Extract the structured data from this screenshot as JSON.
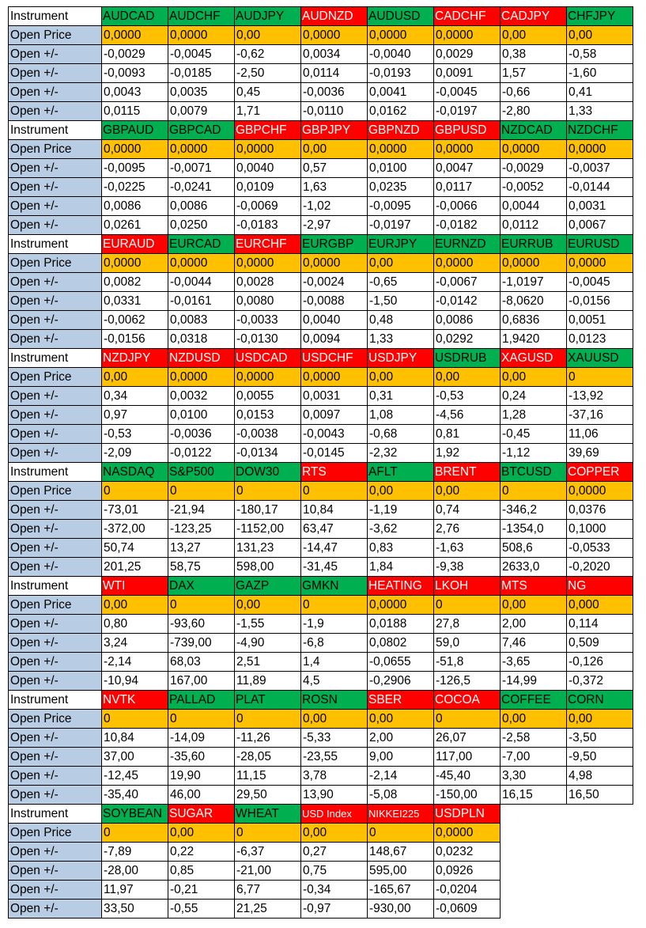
{
  "blocks": [
    {
      "label": "Instrument",
      "instruments": [
        {
          "name": "AUDCAD",
          "color": "#00b050"
        },
        {
          "name": "AUDCHF",
          "color": "#00b050"
        },
        {
          "name": "AUDJPY",
          "color": "#00b050"
        },
        {
          "name": "AUDNZD",
          "color": "#ff0000"
        },
        {
          "name": "AUDUSD",
          "color": "#00b050"
        },
        {
          "name": "CADCHF",
          "color": "#ff0000"
        },
        {
          "name": "CADJPY",
          "color": "#ff0000"
        },
        {
          "name": "CHFJPY",
          "color": "#00b050"
        }
      ],
      "rows": [
        {
          "label": "Open Price",
          "cells": [
            "0,0000",
            "0,0000",
            "0,00",
            "0,0000",
            "0,0000",
            "0,0000",
            "0,00",
            "0,00"
          ]
        },
        {
          "label": "Open +/-",
          "cells": [
            "-0,0029",
            "-0,0045",
            "-0,62",
            "0,0034",
            "-0,0040",
            "0,0029",
            "0,38",
            "-0,58"
          ]
        },
        {
          "label": "Open +/-",
          "cells": [
            "-0,0093",
            "-0,0185",
            "-2,50",
            "0,0114",
            "-0,0193",
            "0,0091",
            "1,57",
            "-1,60"
          ]
        },
        {
          "label": "Open +/-",
          "cells": [
            "0,0043",
            "0,0035",
            "0,45",
            "-0,0036",
            "0,0041",
            "-0,0045",
            "-0,66",
            "0,41"
          ]
        },
        {
          "label": "Open +/-",
          "cells": [
            "0,0115",
            "0,0079",
            "1,71",
            "-0,0110",
            "0,0162",
            "-0,0197",
            "-2,80",
            "1,33"
          ]
        }
      ]
    },
    {
      "label": "Instrument",
      "instruments": [
        {
          "name": "GBPAUD",
          "color": "#00b050"
        },
        {
          "name": "GBPCAD",
          "color": "#00b050"
        },
        {
          "name": "GBPCHF",
          "color": "#ff0000"
        },
        {
          "name": "GBPJPY",
          "color": "#ff0000"
        },
        {
          "name": "GBPNZD",
          "color": "#ff0000"
        },
        {
          "name": "GBPUSD",
          "color": "#ff0000"
        },
        {
          "name": "NZDCAD",
          "color": "#00b050"
        },
        {
          "name": "NZDCHF",
          "color": "#00b050"
        }
      ],
      "rows": [
        {
          "label": "Open Price",
          "cells": [
            "0,0000",
            "0,0000",
            "0,0000",
            "0,00",
            "0,0000",
            "0,0000",
            "0,0000",
            "0,0000"
          ]
        },
        {
          "label": "Open +/-",
          "cells": [
            "-0,0095",
            "-0,0071",
            "0,0040",
            "0,57",
            "0,0100",
            "0,0047",
            "-0,0029",
            "-0,0037"
          ]
        },
        {
          "label": "Open +/-",
          "cells": [
            "-0,0225",
            "-0,0241",
            "0,0109",
            "1,63",
            "0,0235",
            "0,0117",
            "-0,0052",
            "-0,0144"
          ]
        },
        {
          "label": "Open +/-",
          "cells": [
            "0,0086",
            "0,0086",
            "-0,0069",
            "-1,02",
            "-0,0095",
            "-0,0066",
            "0,0044",
            "0,0031"
          ]
        },
        {
          "label": "Open +/-",
          "cells": [
            "0,0261",
            "0,0250",
            "-0,0183",
            "-2,97",
            "-0,0197",
            "-0,0182",
            "0,0112",
            "0,0067"
          ]
        }
      ]
    },
    {
      "label": "Instrument",
      "instruments": [
        {
          "name": "EURAUD",
          "color": "#ff0000"
        },
        {
          "name": "EURCAD",
          "color": "#00b050"
        },
        {
          "name": "EURCHF",
          "color": "#ff0000"
        },
        {
          "name": "EURGBP",
          "color": "#00b050"
        },
        {
          "name": "EURJPY",
          "color": "#00b050"
        },
        {
          "name": "EURNZD",
          "color": "#00b050"
        },
        {
          "name": "EURRUB",
          "color": "#00b050"
        },
        {
          "name": "EURUSD",
          "color": "#00b050"
        }
      ],
      "rows": [
        {
          "label": "Open Price",
          "cells": [
            "0,0000",
            "0,0000",
            "0,0000",
            "0,0000",
            "0,00",
            "0,0000",
            "0,0000",
            "0,0000"
          ]
        },
        {
          "label": "Open +/-",
          "cells": [
            "0,0082",
            "-0,0044",
            "0,0028",
            "-0,0024",
            "-0,65",
            "-0,0067",
            "-1,0197",
            "-0,0045"
          ]
        },
        {
          "label": "Open +/-",
          "cells": [
            "0,0331",
            "-0,0161",
            "0,0080",
            "-0,0088",
            "-1,50",
            "-0,0142",
            "-8,0620",
            "-0,0156"
          ]
        },
        {
          "label": "Open +/-",
          "cells": [
            "-0,0062",
            "0,0083",
            "-0,0033",
            "0,0040",
            "0,48",
            "0,0086",
            "0,6836",
            "0,0051"
          ]
        },
        {
          "label": "Open +/-",
          "cells": [
            "-0,0156",
            "0,0318",
            "-0,0130",
            "0,0094",
            "1,33",
            "0,0292",
            "1,9420",
            "0,0123"
          ]
        }
      ]
    },
    {
      "label": "Instrument",
      "instruments": [
        {
          "name": "NZDJPY",
          "color": "#ff0000"
        },
        {
          "name": "NZDUSD",
          "color": "#ff0000"
        },
        {
          "name": "USDCAD",
          "color": "#ff0000"
        },
        {
          "name": "USDCHF",
          "color": "#ff0000"
        },
        {
          "name": "USDJPY",
          "color": "#ff0000"
        },
        {
          "name": "USDRUB",
          "color": "#00b050"
        },
        {
          "name": "XAGUSD",
          "color": "#ff0000"
        },
        {
          "name": "XAUUSD",
          "color": "#00b050"
        }
      ],
      "rows": [
        {
          "label": "Open Price",
          "cells": [
            "0,00",
            "0,0000",
            "0,0000",
            "0,0000",
            "0,00",
            "0,00",
            "0,00",
            "0"
          ]
        },
        {
          "label": "Open +/-",
          "cells": [
            "0,34",
            "0,0032",
            "0,0055",
            "0,0031",
            "0,31",
            "-0,53",
            "0,24",
            "-13,92"
          ]
        },
        {
          "label": "Open +/-",
          "cells": [
            "0,97",
            "0,0100",
            "0,0153",
            "0,0097",
            "1,08",
            "-4,56",
            "1,28",
            "-37,16"
          ]
        },
        {
          "label": "Open +/-",
          "cells": [
            "-0,53",
            "-0,0036",
            "-0,0038",
            "-0,0043",
            "-0,68",
            "0,81",
            "-0,45",
            "11,06"
          ]
        },
        {
          "label": "Open +/-",
          "cells": [
            "-2,09",
            "-0,0122",
            "-0,0134",
            "-0,0145",
            "-2,32",
            "1,92",
            "-1,12",
            "39,69"
          ]
        }
      ]
    },
    {
      "label": "Instrument",
      "instruments": [
        {
          "name": "NASDAQ",
          "color": "#00b050"
        },
        {
          "name": "S&P500",
          "color": "#00b050"
        },
        {
          "name": "DOW30",
          "color": "#00b050"
        },
        {
          "name": "RTS",
          "color": "#ff0000"
        },
        {
          "name": "AFLT",
          "color": "#00b050"
        },
        {
          "name": "BRENT",
          "color": "#ff0000"
        },
        {
          "name": "BTCUSD",
          "color": "#00b050"
        },
        {
          "name": "COPPER",
          "color": "#ff0000"
        }
      ],
      "rows": [
        {
          "label": "Open Price",
          "cells": [
            "0",
            "0",
            "0",
            "0",
            "0,00",
            "0,00",
            "0",
            "0,0000"
          ]
        },
        {
          "label": "Open +/-",
          "cells": [
            "-73,01",
            "-21,94",
            "-180,17",
            "10,84",
            "-1,19",
            "0,74",
            "-346,2",
            "0,0376"
          ]
        },
        {
          "label": "Open +/-",
          "cells": [
            "-372,00",
            "-123,25",
            "-1152,00",
            "63,47",
            "-3,62",
            "2,76",
            "-1354,0",
            "0,1000"
          ]
        },
        {
          "label": "Open +/-",
          "cells": [
            "50,74",
            "13,27",
            "131,23",
            "-14,47",
            "0,83",
            "-1,63",
            "508,6",
            "-0,0533"
          ]
        },
        {
          "label": "Open +/-",
          "cells": [
            "201,25",
            "58,75",
            "598,00",
            "-31,45",
            "1,84",
            "-9,38",
            "2633,0",
            "-0,2020"
          ]
        }
      ]
    },
    {
      "label": "Instrument",
      "instruments": [
        {
          "name": "WTI",
          "color": "#ff0000"
        },
        {
          "name": "DAX",
          "color": "#00b050"
        },
        {
          "name": "GAZP",
          "color": "#00b050"
        },
        {
          "name": "GMKN",
          "color": "#00b050"
        },
        {
          "name": "HEATING",
          "color": "#ff0000"
        },
        {
          "name": "LKOH",
          "color": "#ff0000"
        },
        {
          "name": "MTS",
          "color": "#ff0000"
        },
        {
          "name": "NG",
          "color": "#ff0000"
        }
      ],
      "rows": [
        {
          "label": "Open Price",
          "cells": [
            "0,00",
            "0",
            "0,00",
            "0",
            "0,0000",
            "0",
            "0,00",
            "0,000"
          ]
        },
        {
          "label": "Open +/-",
          "cells": [
            "0,80",
            "-93,60",
            "-1,55",
            "-1,9",
            "0,0188",
            "27,8",
            "2,00",
            "0,114"
          ]
        },
        {
          "label": "Open +/-",
          "cells": [
            "3,24",
            "-739,00",
            "-4,90",
            "-6,8",
            "0,0802",
            "59,0",
            "7,46",
            "0,509"
          ]
        },
        {
          "label": "Open +/-",
          "cells": [
            "-2,14",
            "68,03",
            "2,51",
            "1,4",
            "-0,0655",
            "-51,8",
            "-3,65",
            "-0,126"
          ]
        },
        {
          "label": "Open +/-",
          "cells": [
            "-10,94",
            "167,00",
            "11,89",
            "4,5",
            "-0,2906",
            "-126,5",
            "-14,99",
            "-0,372"
          ]
        }
      ]
    },
    {
      "label": "Instrument",
      "instruments": [
        {
          "name": "NVTK",
          "color": "#ff0000"
        },
        {
          "name": "PALLAD",
          "color": "#00b050"
        },
        {
          "name": "PLAT",
          "color": "#00b050"
        },
        {
          "name": "ROSN",
          "color": "#00b050"
        },
        {
          "name": "SBER",
          "color": "#ff0000"
        },
        {
          "name": "COCOA",
          "color": "#ff0000"
        },
        {
          "name": "COFFEE",
          "color": "#00b050"
        },
        {
          "name": "CORN",
          "color": "#00b050"
        }
      ],
      "rows": [
        {
          "label": "Open Price",
          "cells": [
            "0",
            "0",
            "0",
            "0,00",
            "0,00",
            "0",
            "0,00",
            "0,00"
          ]
        },
        {
          "label": "Open +/-",
          "cells": [
            "10,84",
            "-14,09",
            "-11,26",
            "-5,33",
            "2,00",
            "26,07",
            "-2,58",
            "-3,50"
          ]
        },
        {
          "label": "Open +/-",
          "cells": [
            "37,00",
            "-35,60",
            "-28,05",
            "-23,55",
            "9,00",
            "117,00",
            "-7,00",
            "-9,50"
          ]
        },
        {
          "label": "Open +/-",
          "cells": [
            "-12,45",
            "19,90",
            "11,15",
            "3,78",
            "-2,14",
            "-45,40",
            "3,30",
            "4,98"
          ]
        },
        {
          "label": "Open +/-",
          "cells": [
            "-35,40",
            "46,00",
            "29,50",
            "13,90",
            "-5,08",
            "-150,00",
            "16,15",
            "16,50"
          ]
        }
      ]
    },
    {
      "label": "Instrument",
      "instruments": [
        {
          "name": "SOYBEAN",
          "color": "#00b050"
        },
        {
          "name": "SUGAR",
          "color": "#ff0000"
        },
        {
          "name": "WHEAT",
          "color": "#00b050"
        },
        {
          "name": "USD Index",
          "color": "#ff0000"
        },
        {
          "name": "NIKKEI225",
          "color": "#ff0000"
        },
        {
          "name": "USDPLN",
          "color": "#ff0000"
        }
      ],
      "rows": [
        {
          "label": "Open Price",
          "cells": [
            "0",
            "0,00",
            "0",
            "0,00",
            "0",
            "0,0000"
          ]
        },
        {
          "label": "Open +/-",
          "cells": [
            "-7,89",
            "0,22",
            "-6,37",
            "0,27",
            "148,67",
            "0,0232"
          ]
        },
        {
          "label": "Open +/-",
          "cells": [
            "-28,00",
            "0,85",
            "-21,00",
            "0,75",
            "595,00",
            "0,0926"
          ]
        },
        {
          "label": "Open +/-",
          "cells": [
            "11,97",
            "-0,21",
            "6,77",
            "-0,34",
            "-165,67",
            "-0,0204"
          ]
        },
        {
          "label": "Open +/-",
          "cells": [
            "33,50",
            "-0,55",
            "21,25",
            "-0,97",
            "-930,00",
            "-0,0609"
          ]
        }
      ]
    }
  ]
}
